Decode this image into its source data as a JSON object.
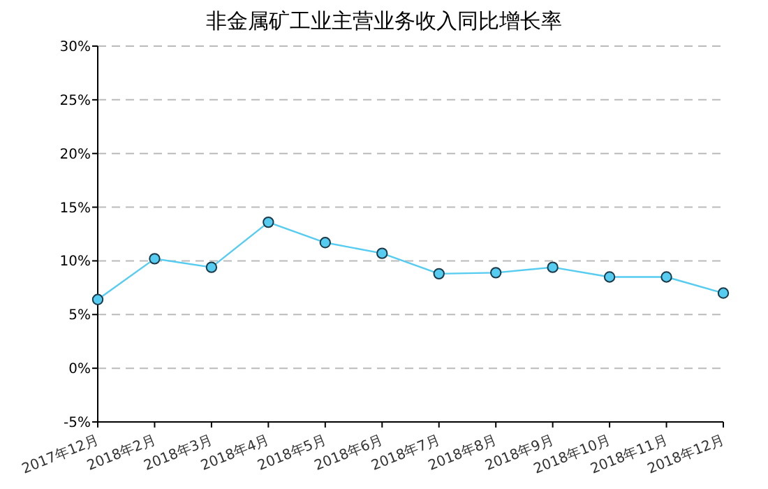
{
  "chart_data": {
    "type": "line",
    "title": "非金属矿工业主营业务收入同比增长率",
    "categories": [
      "2017年12月",
      "2018年2月",
      "2018年3月",
      "2018年4月",
      "2018年5月",
      "2018年6月",
      "2018年7月",
      "2018年8月",
      "2018年9月",
      "2018年10月",
      "2018年11月",
      "2018年12月"
    ],
    "series": [
      {
        "color": "#55ccf0",
        "values": [
          6.4,
          10.2,
          9.4,
          13.6,
          11.7,
          10.7,
          8.8,
          8.9,
          9.4,
          8.5,
          8.5,
          7.0
        ]
      }
    ],
    "ylim": [
      -5,
      30
    ],
    "yticks": [
      {
        "value": -5,
        "label": "-5%"
      },
      {
        "value": 0,
        "label": "0%"
      },
      {
        "value": 5,
        "label": "5%"
      },
      {
        "value": 10,
        "label": "10%"
      },
      {
        "value": 15,
        "label": "15%"
      },
      {
        "value": 20,
        "label": "20%"
      },
      {
        "value": 25,
        "label": "25%"
      },
      {
        "value": 30,
        "label": "30%"
      }
    ],
    "grid": "y",
    "marker": "circle",
    "line_style": "solid"
  }
}
